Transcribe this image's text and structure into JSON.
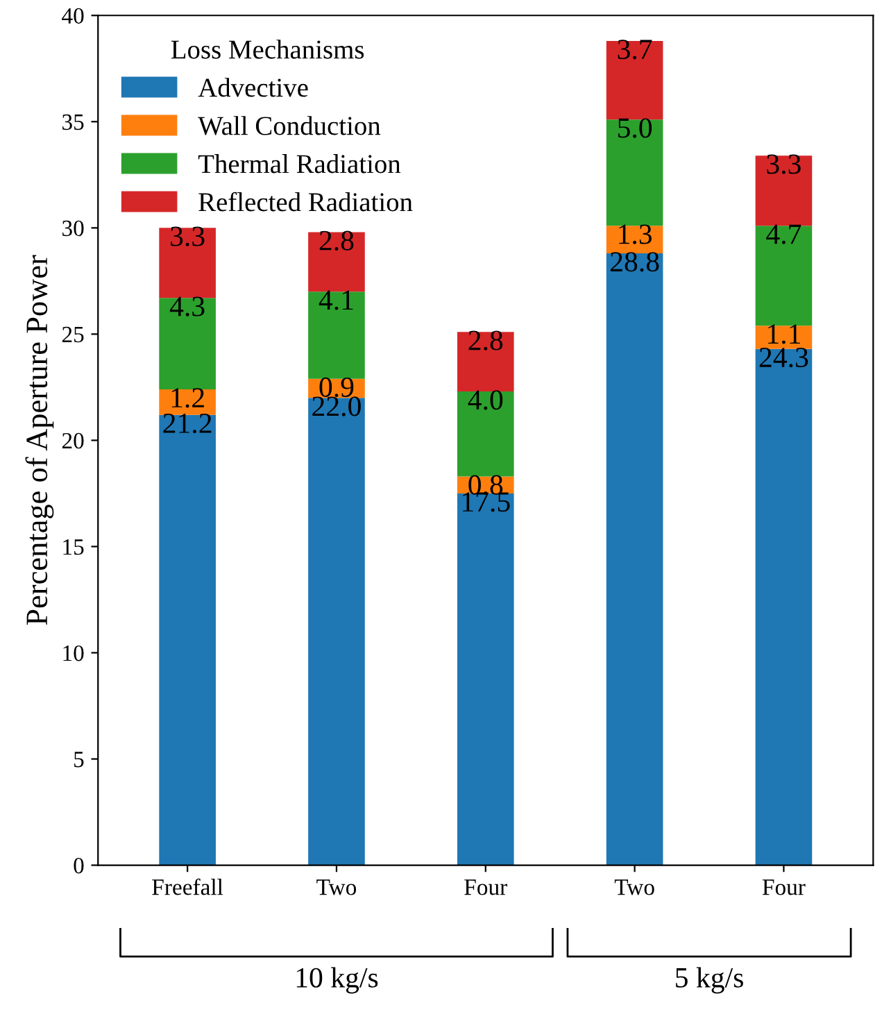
{
  "chart_data": {
    "type": "bar",
    "stacked": true,
    "ylabel": "Percentage of Aperture Power",
    "legend_title": "Loss Mechanisms",
    "categories": [
      "Freefall",
      "Two",
      "Four",
      "Two",
      "Four"
    ],
    "series": [
      {
        "name": "Advective",
        "color": "#1f77b4",
        "values": [
          21.2,
          22.0,
          17.5,
          28.8,
          24.3
        ],
        "value_labels": [
          "21.2",
          "22.0",
          "17.5",
          "28.8",
          "24.3"
        ]
      },
      {
        "name": "Wall Conduction",
        "color": "#ff7f0e",
        "values": [
          1.2,
          0.9,
          0.8,
          1.3,
          1.1
        ],
        "value_labels": [
          "1.2",
          "0.9",
          "0.8",
          "1.3",
          "1.1"
        ]
      },
      {
        "name": "Thermal Radiation",
        "color": "#2ca02c",
        "values": [
          4.3,
          4.1,
          4.0,
          5.0,
          4.7
        ],
        "value_labels": [
          "4.3",
          "4.1",
          "4.0",
          "5.0",
          "4.7"
        ]
      },
      {
        "name": "Reflected Radiation",
        "color": "#d62728",
        "values": [
          3.3,
          2.8,
          2.8,
          3.7,
          3.3
        ],
        "value_labels": [
          "3.3",
          "2.8",
          "2.8",
          "3.7",
          "3.3"
        ]
      }
    ],
    "ylim": [
      0,
      40
    ],
    "yticks": [
      0,
      5,
      10,
      15,
      20,
      25,
      30,
      35,
      40
    ],
    "legend": "top left",
    "grid": false,
    "annotations": [
      "10 kg/s",
      "5 kg/s"
    ]
  }
}
